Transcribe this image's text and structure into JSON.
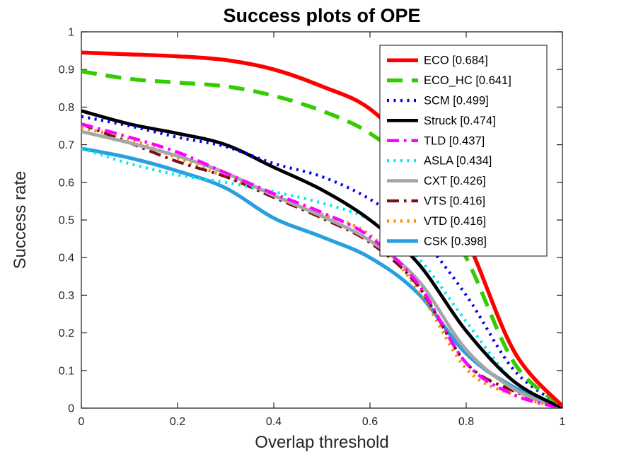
{
  "chart_data": {
    "type": "line",
    "title": "Success plots of OPE",
    "xlabel": "Overlap threshold",
    "ylabel": "Success rate",
    "xlim": [
      0,
      1
    ],
    "ylim": [
      0,
      1
    ],
    "grid": false,
    "legend_position": "top-right",
    "xticks": [
      0,
      0.2,
      0.4,
      0.6,
      0.8,
      1
    ],
    "xtick_labels": [
      "0",
      "0.2",
      "0.4",
      "0.6",
      "0.8",
      "1"
    ],
    "yticks": [
      0,
      0.1,
      0.2,
      0.3,
      0.4,
      0.5,
      0.6,
      0.7,
      0.8,
      0.9,
      1
    ],
    "ytick_labels": [
      "0",
      "0.1",
      "0.2",
      "0.3",
      "0.4",
      "0.5",
      "0.6",
      "0.7",
      "0.8",
      "0.9",
      "1"
    ],
    "x": [
      0,
      0.1,
      0.2,
      0.3,
      0.4,
      0.5,
      0.6,
      0.7,
      0.8,
      0.9,
      1
    ],
    "series": [
      {
        "name": "ECO",
        "auc": 0.684,
        "label": "ECO [0.684]",
        "color": "#ff0000",
        "style": "solid",
        "width": 5.5,
        "values": [
          0.945,
          0.94,
          0.935,
          0.925,
          0.9,
          0.855,
          0.795,
          0.66,
          0.45,
          0.15,
          0.005
        ]
      },
      {
        "name": "ECO_HC",
        "auc": 0.641,
        "label": "ECO_HC [0.641]",
        "color": "#33cc00",
        "style": "dashed",
        "width": 5.5,
        "values": [
          0.895,
          0.875,
          0.865,
          0.855,
          0.83,
          0.79,
          0.73,
          0.62,
          0.4,
          0.12,
          0.005
        ]
      },
      {
        "name": "SCM",
        "auc": 0.499,
        "label": "SCM [0.499]",
        "color": "#0000f0",
        "style": "dotted",
        "width": 4.2,
        "values": [
          0.775,
          0.75,
          0.72,
          0.695,
          0.65,
          0.615,
          0.555,
          0.46,
          0.3,
          0.1,
          0.005
        ]
      },
      {
        "name": "Struck",
        "auc": 0.474,
        "label": "Struck [0.474]",
        "color": "#000000",
        "style": "solid",
        "width": 4.8,
        "values": [
          0.79,
          0.755,
          0.73,
          0.7,
          0.64,
          0.58,
          0.5,
          0.385,
          0.205,
          0.07,
          0.0
        ]
      },
      {
        "name": "TLD",
        "auc": 0.437,
        "label": "TLD [0.437]",
        "color": "#ff00ff",
        "style": "dashdot",
        "width": 4.5,
        "values": [
          0.755,
          0.72,
          0.68,
          0.625,
          0.57,
          0.52,
          0.455,
          0.33,
          0.12,
          0.035,
          0.0
        ]
      },
      {
        "name": "ASLA",
        "auc": 0.434,
        "label": "ASLA [0.434]",
        "color": "#00e8ee",
        "style": "dotted",
        "width": 4.2,
        "values": [
          0.69,
          0.65,
          0.62,
          0.6,
          0.575,
          0.545,
          0.5,
          0.4,
          0.23,
          0.07,
          0.0
        ]
      },
      {
        "name": "CXT",
        "auc": 0.426,
        "label": "CXT [0.426]",
        "color": "#a6a6a6",
        "style": "solid",
        "width": 4.8,
        "values": [
          0.735,
          0.705,
          0.67,
          0.625,
          0.565,
          0.51,
          0.445,
          0.34,
          0.155,
          0.05,
          0.0
        ]
      },
      {
        "name": "VTS",
        "auc": 0.416,
        "label": "VTS [0.416]",
        "color": "#7a1014",
        "style": "dashdot",
        "width": 4.2,
        "values": [
          0.755,
          0.705,
          0.655,
          0.615,
          0.56,
          0.505,
          0.44,
          0.325,
          0.12,
          0.045,
          0.0
        ]
      },
      {
        "name": "VTD",
        "auc": 0.416,
        "label": "VTD [0.416]",
        "color": "#ff8c00",
        "style": "dotted",
        "width": 4.6,
        "values": [
          0.745,
          0.715,
          0.665,
          0.615,
          0.565,
          0.515,
          0.46,
          0.315,
          0.105,
          0.035,
          0.0
        ]
      },
      {
        "name": "CSK",
        "auc": 0.398,
        "label": "CSK [0.398]",
        "color": "#28a0e0",
        "style": "solid",
        "width": 5.2,
        "values": [
          0.69,
          0.665,
          0.63,
          0.585,
          0.505,
          0.455,
          0.4,
          0.305,
          0.145,
          0.055,
          0.0
        ]
      }
    ]
  }
}
